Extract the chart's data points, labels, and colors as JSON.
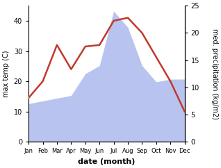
{
  "months": [
    "Jan",
    "Feb",
    "Mar",
    "Apr",
    "May",
    "Jun",
    "Jul",
    "Aug",
    "Sep",
    "Oct",
    "Nov",
    "Dec"
  ],
  "month_x": [
    1,
    2,
    3,
    4,
    5,
    6,
    7,
    8,
    9,
    10,
    11,
    12
  ],
  "max_temp": [
    14.5,
    20.0,
    32.0,
    24.0,
    31.5,
    32.0,
    40.0,
    41.0,
    36.0,
    28.0,
    20.0,
    10.0
  ],
  "precipitation": [
    7.0,
    7.5,
    8.0,
    8.5,
    12.5,
    14.0,
    24.0,
    21.0,
    14.0,
    11.0,
    11.5,
    11.5
  ],
  "temp_color": "#c0392b",
  "precip_fill_color": "#b8c4ef",
  "left_ylabel": "max temp (C)",
  "right_ylabel": "med. precipitation (kg/m2)",
  "xlabel": "date (month)",
  "ylim_left": [
    0,
    45
  ],
  "ylim_right": [
    0,
    25
  ],
  "left_yticks": [
    0,
    10,
    20,
    30,
    40
  ],
  "right_yticks": [
    0,
    5,
    10,
    15,
    20,
    25
  ],
  "bg_color": "#ffffff"
}
